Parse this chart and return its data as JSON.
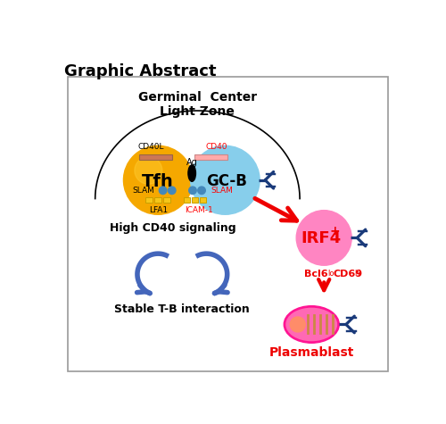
{
  "title": "Graphic Abstract",
  "gc_label": "Germinal  Center\nLight Zone",
  "tfh_label": "Tfh",
  "gcb_label": "GC-B",
  "irf4_label": "IRF4",
  "irf4_plus": "+",
  "plasmablast_label": "Plasmablast",
  "cd40l_label": "CD40L",
  "cd40_label": "CD40",
  "ag_label": "Ag",
  "slam_left_label": "SLAM",
  "slam_right_label": "SLAM",
  "lfa1_label": "LFA1",
  "icam1_label": "ICAM-1",
  "high_cd40_label": "High CD40 signaling",
  "stable_tb_label": "Stable T-B interaction",
  "bcl6_label": "Bcl6",
  "cd69_label": "CD69",
  "tfh_color": "#F5A800",
  "gcb_color": "#87CEEB",
  "irf4_color": "#FF85C2",
  "plasmablast_outer": "#FF1493",
  "plasmablast_inner": "#FF69B4",
  "bg_color": "#FFFFFF",
  "red_color": "#EE0000",
  "blue_color": "#4466BB",
  "navy_color": "#1A3A7A",
  "cd40l_bar_color": "#CC7755",
  "cd40_bar_color": "#FFAAAA",
  "yellow_color": "#F5C518",
  "slam_dot_color": "#4488BB",
  "nucleus_color": "#FF8C69",
  "er_color": "#CC8844"
}
